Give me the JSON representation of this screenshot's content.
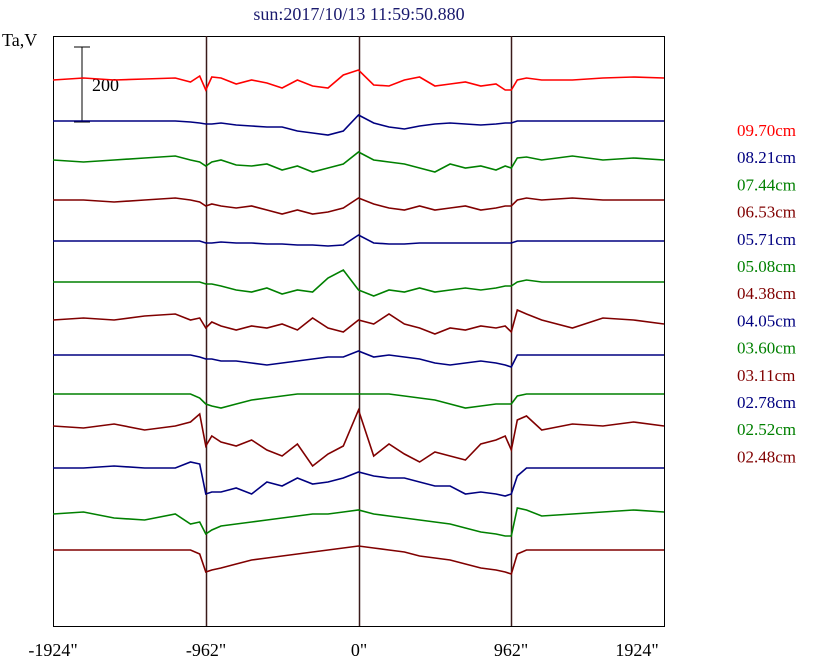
{
  "chart_data": {
    "type": "line",
    "title": "sun:2017/10/13 11:59:50.880",
    "ylabel": "Ta,V",
    "scale_bar": "200",
    "x_ticks": [
      "-1924\"",
      "-962\"",
      "0\"",
      "962\"",
      "1924\""
    ],
    "xlim": [
      -1924,
      1924
    ],
    "vertical_markers": [
      -962,
      0,
      962
    ],
    "x": [
      -1924,
      -1732,
      -1539,
      -1347,
      -1154,
      -1058,
      -1000,
      -962,
      -924,
      -866,
      -770,
      -673,
      -577,
      -481,
      -385,
      -289,
      -192,
      -96,
      0,
      96,
      192,
      289,
      385,
      481,
      577,
      673,
      770,
      866,
      924,
      962,
      1000,
      1058,
      1154,
      1347,
      1539,
      1732,
      1924
    ],
    "series": [
      {
        "name": "09.70cm",
        "color": "#ff0000",
        "offset": 80,
        "values": [
          0,
          2,
          0,
          1,
          2,
          -2,
          4,
          -10,
          3,
          2,
          -4,
          0,
          -3,
          -8,
          0,
          -6,
          -8,
          5,
          10,
          -5,
          -6,
          0,
          3,
          -6,
          -4,
          -2,
          -6,
          -4,
          -10,
          -10,
          0,
          2,
          0,
          0,
          2,
          3,
          2
        ]
      },
      {
        "name": "08.21cm",
        "color": "#000080",
        "offset": 121,
        "values": [
          0,
          0,
          0,
          0,
          0,
          -1,
          -2,
          -3,
          -3,
          -2,
          -4,
          -5,
          -6,
          -6,
          -10,
          -12,
          -14,
          -10,
          6,
          -2,
          -6,
          -8,
          -5,
          -3,
          -2,
          -3,
          -4,
          -3,
          -2,
          -2,
          0,
          0,
          0,
          0,
          0,
          0,
          0
        ]
      },
      {
        "name": "07.44cm",
        "color": "#008000",
        "offset": 160,
        "values": [
          0,
          -2,
          0,
          2,
          4,
          0,
          -2,
          -6,
          -2,
          0,
          -5,
          -6,
          -4,
          -10,
          -6,
          -12,
          -8,
          -4,
          8,
          0,
          -2,
          -4,
          -8,
          -12,
          -4,
          -8,
          -6,
          -10,
          -6,
          -8,
          2,
          3,
          0,
          4,
          0,
          2,
          0
        ]
      },
      {
        "name": "06.53cm",
        "color": "#800000",
        "offset": 200,
        "values": [
          0,
          0,
          -2,
          0,
          2,
          0,
          -2,
          -6,
          -4,
          -6,
          -8,
          -6,
          -10,
          -14,
          -10,
          -14,
          -12,
          -8,
          2,
          -4,
          -8,
          -10,
          -6,
          -10,
          -8,
          -6,
          -10,
          -8,
          -6,
          -6,
          0,
          2,
          0,
          2,
          0,
          0,
          0
        ]
      },
      {
        "name": "05.71cm",
        "color": "#000080",
        "offset": 241,
        "values": [
          0,
          0,
          0,
          0,
          0,
          0,
          0,
          -2,
          -2,
          -1,
          -2,
          -2,
          -3,
          -3,
          -4,
          -4,
          -5,
          -4,
          6,
          -2,
          -3,
          -3,
          -2,
          -2,
          -2,
          -2,
          -2,
          -2,
          -2,
          -2,
          0,
          0,
          0,
          0,
          0,
          0,
          0
        ]
      },
      {
        "name": "05.08cm",
        "color": "#008000",
        "offset": 282,
        "values": [
          0,
          0,
          0,
          0,
          0,
          0,
          0,
          -2,
          -2,
          -4,
          -8,
          -10,
          -6,
          -12,
          -8,
          -10,
          4,
          12,
          -8,
          -14,
          -8,
          -10,
          -6,
          -10,
          -8,
          -6,
          -8,
          -6,
          -4,
          -4,
          0,
          2,
          0,
          0,
          0,
          0,
          0
        ]
      },
      {
        "name": "04.38cm",
        "color": "#800000",
        "offset": 320,
        "values": [
          0,
          2,
          0,
          4,
          6,
          0,
          2,
          -8,
          -2,
          -6,
          -10,
          -6,
          -8,
          -4,
          -10,
          2,
          -8,
          -12,
          0,
          -4,
          6,
          -4,
          -8,
          -14,
          -8,
          -10,
          -6,
          -8,
          -6,
          -12,
          10,
          6,
          0,
          -8,
          2,
          0,
          -4
        ]
      },
      {
        "name": "04.05cm",
        "color": "#000080",
        "offset": 355,
        "values": [
          0,
          0,
          0,
          0,
          0,
          0,
          -2,
          -4,
          -4,
          -6,
          -6,
          -8,
          -10,
          -8,
          -6,
          -4,
          -2,
          -2,
          4,
          -2,
          0,
          -2,
          -4,
          -8,
          -10,
          -8,
          -6,
          -8,
          -10,
          -12,
          0,
          0,
          0,
          0,
          0,
          0,
          0
        ]
      },
      {
        "name": "03.60cm",
        "color": "#008000",
        "offset": 394,
        "values": [
          0,
          0,
          0,
          0,
          0,
          0,
          -4,
          -10,
          -12,
          -14,
          -10,
          -6,
          -4,
          -2,
          0,
          0,
          0,
          0,
          0,
          0,
          0,
          -2,
          -4,
          -6,
          -10,
          -14,
          -12,
          -10,
          -10,
          -10,
          -2,
          0,
          0,
          0,
          0,
          0,
          0
        ]
      },
      {
        "name": "03.11cm",
        "color": "#800000",
        "offset": 426,
        "values": [
          0,
          -2,
          2,
          -4,
          0,
          4,
          12,
          -20,
          -10,
          -16,
          -20,
          -14,
          -24,
          -30,
          -18,
          -40,
          -28,
          -20,
          16,
          -30,
          -18,
          -28,
          -36,
          -26,
          -30,
          -34,
          -18,
          -14,
          -10,
          -24,
          6,
          10,
          -4,
          2,
          0,
          4,
          0
        ]
      },
      {
        "name": "02.78cm",
        "color": "#000080",
        "offset": 468,
        "values": [
          0,
          0,
          2,
          0,
          0,
          6,
          4,
          -26,
          -24,
          -24,
          -20,
          -26,
          -14,
          -18,
          -10,
          -16,
          -14,
          -10,
          -4,
          -8,
          -10,
          -10,
          -14,
          -18,
          -18,
          -26,
          -24,
          -26,
          -28,
          -26,
          -8,
          0,
          0,
          0,
          0,
          0,
          0
        ]
      },
      {
        "name": "02.52cm",
        "color": "#008000",
        "offset": 514,
        "values": [
          0,
          2,
          -4,
          -6,
          0,
          -10,
          -8,
          -20,
          -16,
          -12,
          -10,
          -8,
          -6,
          -4,
          -2,
          0,
          0,
          2,
          4,
          0,
          -2,
          -4,
          -6,
          -8,
          -10,
          -14,
          -18,
          -20,
          -22,
          -22,
          6,
          4,
          -2,
          0,
          2,
          4,
          2
        ]
      },
      {
        "name": "02.48cm",
        "color": "#800000",
        "offset": 550,
        "values": [
          0,
          0,
          0,
          0,
          0,
          0,
          -4,
          -22,
          -20,
          -18,
          -14,
          -10,
          -8,
          -6,
          -4,
          -2,
          0,
          2,
          4,
          2,
          0,
          -2,
          -6,
          -8,
          -10,
          -14,
          -18,
          -20,
          -22,
          -24,
          -4,
          0,
          0,
          0,
          0,
          0,
          0
        ]
      }
    ]
  }
}
